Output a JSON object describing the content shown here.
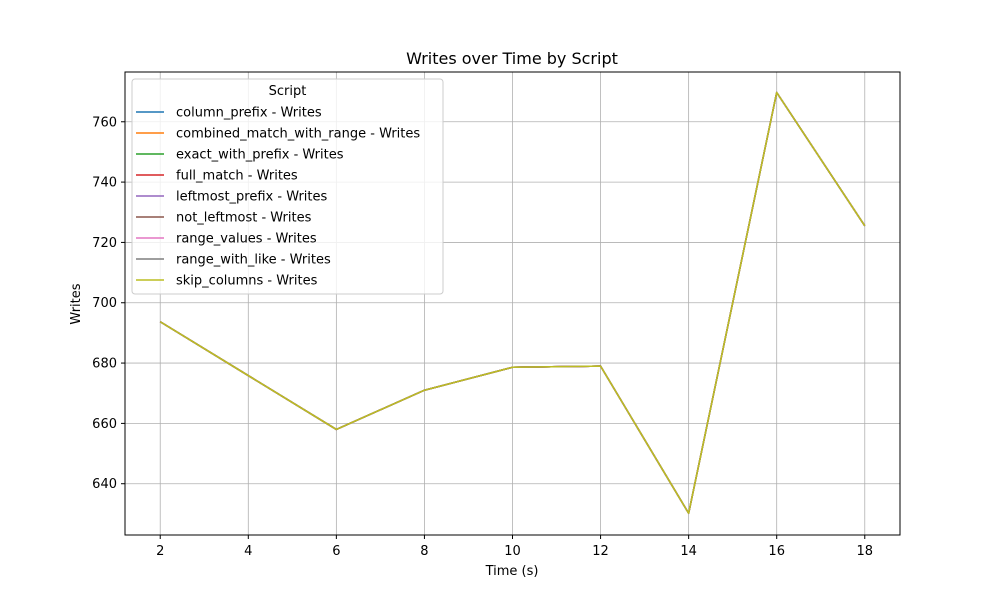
{
  "chart_data": {
    "type": "line",
    "title": "Writes over Time by Script",
    "xlabel": "Time (s)",
    "ylabel": "Writes",
    "xlim": [
      1.2,
      18.8
    ],
    "ylim": [
      623,
      776.5
    ],
    "xticks": [
      2,
      4,
      6,
      8,
      10,
      12,
      14,
      16,
      18
    ],
    "yticks": [
      640,
      660,
      680,
      700,
      720,
      740,
      760
    ],
    "grid": true,
    "legend": {
      "title": "Script",
      "placement": "top-left"
    },
    "x": [
      2,
      6,
      8,
      10,
      12,
      14,
      16,
      18
    ],
    "series": [
      {
        "name": "column_prefix - Writes",
        "color": "#1f77b4",
        "values": [
          693.7,
          658.0,
          671.0,
          678.6,
          679.0,
          630.2,
          769.7,
          725.5
        ]
      },
      {
        "name": "combined_match_with_range - Writes",
        "color": "#ff7f0e",
        "values": [
          693.7,
          658.0,
          671.0,
          678.6,
          679.0,
          630.2,
          769.7,
          725.5
        ]
      },
      {
        "name": "exact_with_prefix - Writes",
        "color": "#2ca02c",
        "values": [
          693.7,
          658.0,
          671.0,
          678.6,
          679.0,
          630.2,
          769.7,
          725.5
        ]
      },
      {
        "name": "full_match - Writes",
        "color": "#d62728",
        "values": [
          693.7,
          658.0,
          671.0,
          678.6,
          679.0,
          630.2,
          769.7,
          725.5
        ]
      },
      {
        "name": "leftmost_prefix - Writes",
        "color": "#9467bd",
        "values": [
          693.7,
          658.0,
          671.0,
          678.6,
          679.0,
          630.2,
          769.7,
          725.5
        ]
      },
      {
        "name": "not_leftmost - Writes",
        "color": "#8c564b",
        "values": [
          693.7,
          658.0,
          671.0,
          678.6,
          679.0,
          630.2,
          769.7,
          725.5
        ]
      },
      {
        "name": "range_values - Writes",
        "color": "#e377c2",
        "values": [
          693.7,
          658.0,
          671.0,
          678.6,
          679.0,
          630.2,
          769.7,
          725.5
        ]
      },
      {
        "name": "range_with_like - Writes",
        "color": "#7f7f7f",
        "values": [
          693.7,
          658.0,
          671.0,
          678.6,
          679.0,
          630.2,
          769.7,
          725.5
        ]
      },
      {
        "name": "skip_columns - Writes",
        "color": "#bcbd22",
        "values": [
          693.7,
          658.0,
          671.0,
          678.6,
          679.0,
          630.2,
          769.7,
          725.5
        ]
      }
    ]
  }
}
